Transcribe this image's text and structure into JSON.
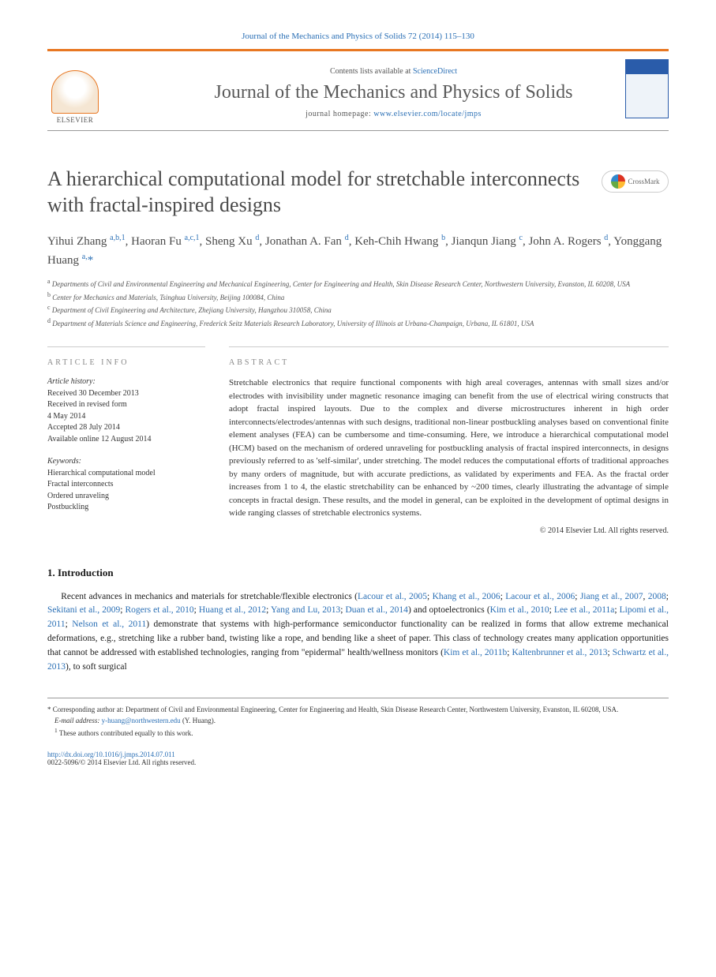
{
  "header": {
    "top_citation": "Journal of the Mechanics and Physics of Solids 72 (2014) 115–130",
    "contents_prefix": "Contents lists available at ",
    "contents_link": "ScienceDirect",
    "journal_name": "Journal of the Mechanics and Physics of Solids",
    "homepage_prefix": "journal homepage: ",
    "homepage_url": "www.elsevier.com/locate/jmps",
    "publisher": "ELSEVIER"
  },
  "crossmark": {
    "label": "CrossMark"
  },
  "article": {
    "title": "A hierarchical computational model for stretchable interconnects with fractal-inspired designs",
    "authors_html": "Yihui Zhang <sup>a,b,1</sup>, Haoran Fu <sup>a,c,1</sup>, Sheng Xu <sup>d</sup>, Jonathan A. Fan <sup>d</sup>, Keh-Chih Hwang <sup>b</sup>, Jianqun Jiang <sup>c</sup>, John A. Rogers <sup>d</sup>, Yonggang Huang <sup>a,</sup><span class='star'>*</span>",
    "affiliations": [
      {
        "sup": "a",
        "text": "Departments of Civil and Environmental Engineering and Mechanical Engineering, Center for Engineering and Health, Skin Disease Research Center, Northwestern University, Evanston, IL 60208, USA"
      },
      {
        "sup": "b",
        "text": "Center for Mechanics and Materials, Tsinghua University, Beijing 100084, China"
      },
      {
        "sup": "c",
        "text": "Department of Civil Engineering and Architecture, Zhejiang University, Hangzhou 310058, China"
      },
      {
        "sup": "d",
        "text": "Department of Materials Science and Engineering, Frederick Seitz Materials Research Laboratory, University of Illinois at Urbana-Champaign, Urbana, IL 61801, USA"
      }
    ]
  },
  "info": {
    "label": "ARTICLE INFO",
    "history_label": "Article history:",
    "history": [
      "Received 30 December 2013",
      "Received in revised form",
      "4 May 2014",
      "Accepted 28 July 2014",
      "Available online 12 August 2014"
    ],
    "keywords_label": "Keywords:",
    "keywords": [
      "Hierarchical computational model",
      "Fractal interconnects",
      "Ordered unraveling",
      "Postbuckling"
    ]
  },
  "abstract": {
    "label": "ABSTRACT",
    "text": "Stretchable electronics that require functional components with high areal coverages, antennas with small sizes and/or electrodes with invisibility under magnetic resonance imaging can benefit from the use of electrical wiring constructs that adopt fractal inspired layouts. Due to the complex and diverse microstructures inherent in high order interconnects/electrodes/antennas with such designs, traditional non-linear postbuckling analyses based on conventional finite element analyses (FEA) can be cumbersome and time-consuming. Here, we introduce a hierarchical computational model (HCM) based on the mechanism of ordered unraveling for postbuckling analysis of fractal inspired interconnects, in designs previously referred to as 'self-similar', under stretching. The model reduces the computational efforts of traditional approaches by many orders of magnitude, but with accurate predictions, as validated by experiments and FEA. As the fractal order increases from 1 to 4, the elastic stretchability can be enhanced by ~200 times, clearly illustrating the advantage of simple concepts in fractal design. These results, and the model in general, can be exploited in the development of optimal designs in wide ranging classes of stretchable electronics systems.",
    "copyright": "© 2014 Elsevier Ltd. All rights reserved."
  },
  "intro": {
    "heading": "1. Introduction",
    "body_html": "Recent advances in mechanics and materials for stretchable/flexible electronics (<a>Lacour et al., 2005</a>; <a>Khang et al., 2006</a>; <a>Lacour et al., 2006</a>; <a>Jiang et al., 2007</a>, <a>2008</a>; <a>Sekitani et al., 2009</a>; <a>Rogers et al., 2010</a>; <a>Huang et al., 2012</a>; <a>Yang and Lu, 2013</a>; <a>Duan et al., 2014</a>) and optoelectronics (<a>Kim et al., 2010</a>; <a>Lee et al., 2011a</a>; <a>Lipomi et al., 2011</a>; <a>Nelson et al., 2011</a>) demonstrate that systems with high-performance semiconductor functionality can be realized in forms that allow extreme mechanical deformations, e.g., stretching like a rubber band, twisting like a rope, and bending like a sheet of paper. This class of technology creates many application opportunities that cannot be addressed with established technologies, ranging from \"epidermal\" health/wellness monitors (<a>Kim et al., 2011b</a>; <a>Kaltenbrunner et al., 2013</a>; <a>Schwartz et al., 2013</a>), to soft surgical"
  },
  "footnotes": {
    "corresponding": "* Corresponding author at: Department of Civil and Environmental Engineering, Center for Engineering and Health, Skin Disease Research Center, Northwestern University, Evanston, IL 60208, USA.",
    "email_label": "E-mail address: ",
    "email": "y-huang@northwestern.edu",
    "email_paren": " (Y. Huang).",
    "equal": "These authors contributed equally to this work.",
    "doi": "http://dx.doi.org/10.1016/j.jmps.2014.07.011",
    "issn": "0022-5096/© 2014 Elsevier Ltd. All rights reserved."
  },
  "colors": {
    "accent": "#e87722",
    "link": "#2a6fb5",
    "text_body": "#333333",
    "text_heading": "#4a4a4a",
    "rule": "#cccccc"
  }
}
